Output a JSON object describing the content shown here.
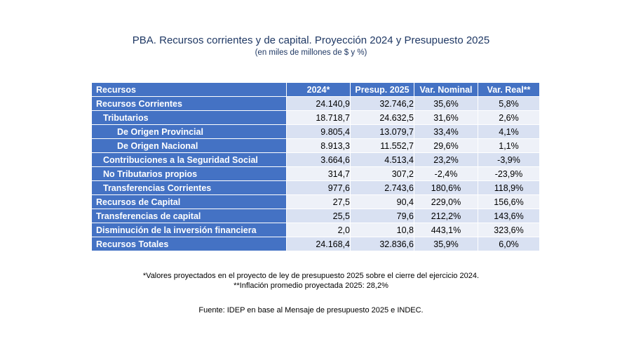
{
  "header": {
    "title": "PBA. Recursos corrientes y de capital. Proyección 2024 y Presupuesto 2025",
    "subtitle": "(en miles de millones de $ y %)"
  },
  "table": {
    "columns": [
      "Recursos",
      "2024*",
      "Presup. 2025",
      "Var. Nominal",
      "Var. Real**"
    ],
    "rows": [
      {
        "label": "Recursos Corrientes",
        "indent": 0,
        "v2024": "24.140,9",
        "v2025": "32.746,2",
        "nominal": "35,6%",
        "real": "5,8%"
      },
      {
        "label": "Tributarios",
        "indent": 1,
        "v2024": "18.718,7",
        "v2025": "24.632,5",
        "nominal": "31,6%",
        "real": "2,6%"
      },
      {
        "label": "De Origen Provincial",
        "indent": 2,
        "v2024": "9.805,4",
        "v2025": "13.079,7",
        "nominal": "33,4%",
        "real": "4,1%"
      },
      {
        "label": "De Origen Nacional",
        "indent": 2,
        "v2024": "8.913,3",
        "v2025": "11.552,7",
        "nominal": "29,6%",
        "real": "1,1%"
      },
      {
        "label": "Contribuciones a la Seguridad Social",
        "indent": 1,
        "v2024": "3.664,6",
        "v2025": "4.513,4",
        "nominal": "23,2%",
        "real": "-3,9%"
      },
      {
        "label": "No Tributarios propios",
        "indent": 1,
        "v2024": "314,7",
        "v2025": "307,2",
        "nominal": "-2,4%",
        "real": "-23,9%"
      },
      {
        "label": "Transferencias Corrientes",
        "indent": 1,
        "v2024": "977,6",
        "v2025": "2.743,6",
        "nominal": "180,6%",
        "real": "118,9%"
      },
      {
        "label": "Recursos de Capital",
        "indent": 0,
        "v2024": "27,5",
        "v2025": "90,4",
        "nominal": "229,0%",
        "real": "156,6%"
      },
      {
        "label": "Transferencias de capital",
        "indent": 0,
        "v2024": "25,5",
        "v2025": "79,6",
        "nominal": "212,2%",
        "real": "143,6%"
      },
      {
        "label": "Disminución de la inversión financiera",
        "indent": 0,
        "v2024": "2,0",
        "v2025": "10,8",
        "nominal": "443,1%",
        "real": "323,6%"
      },
      {
        "label": "Recursos Totales",
        "indent": 0,
        "v2024": "24.168,4",
        "v2025": "32.836,6",
        "nominal": "35,9%",
        "real": "6,0%"
      }
    ]
  },
  "notes": {
    "note1": "*Valores proyectados en el proyecto de ley de presupuesto 2025 sobre el cierre del ejercicio 2024.",
    "note2": "**Inflación promedio proyectada 2025: 28,2%",
    "source": "Fuente: IDEP en base al Mensaje de presupuesto 2025 e INDEC."
  }
}
